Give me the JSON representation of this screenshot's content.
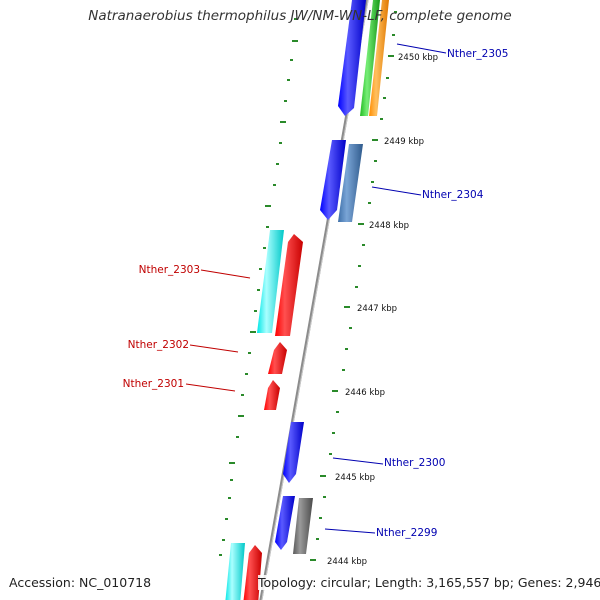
{
  "title": "Natranaerobius thermophilus JW/NM-WN-LF, complete genome",
  "accession": "Accession: NC_010718",
  "topology": "Topology: circular; Length: 3,165,557 bp; Genes: 2,946",
  "colors": {
    "background": "#ffffff",
    "backbone": "#8c8c8c",
    "tick_green": "#2a8a2a",
    "label_blue": "#0000b0",
    "label_red": "#c00000",
    "gene_blue": "#0000ff",
    "gene_red": "#ff0000",
    "gene_cyan": "#00ffff",
    "gene_steelblue": "#4a7ab5",
    "gene_gray": "#6e6e6e",
    "gene_green": "#2ecc2e",
    "gene_orange": "#ff9900"
  },
  "kbp_labels": [
    "2450 kbp",
    "2449 kbp",
    "2448 kbp",
    "2447 kbp",
    "2446 kbp",
    "2445 kbp",
    "2444 kbp"
  ],
  "gene_labels": [
    {
      "text": "Nther_2305",
      "side": "right",
      "color": "blue"
    },
    {
      "text": "Nther_2304",
      "side": "right",
      "color": "blue"
    },
    {
      "text": "Nther_2303",
      "side": "left",
      "color": "red"
    },
    {
      "text": "Nther_2302",
      "side": "left",
      "color": "red"
    },
    {
      "text": "Nther_2301",
      "side": "left",
      "color": "red"
    },
    {
      "text": "Nther_2300",
      "side": "right",
      "color": "blue"
    },
    {
      "text": "Nther_2299",
      "side": "right",
      "color": "blue"
    }
  ]
}
